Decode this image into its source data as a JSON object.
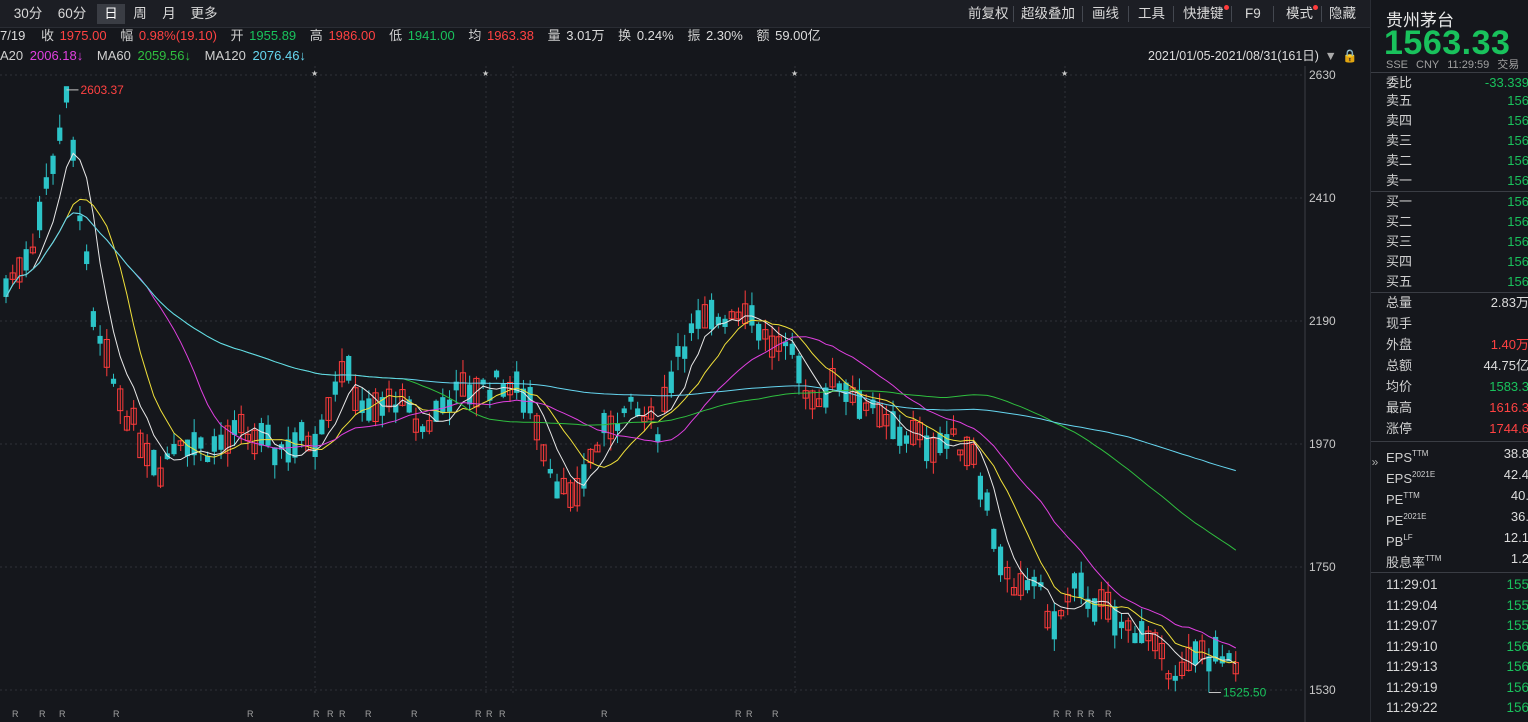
{
  "toolbar": {
    "timeframes": [
      {
        "label": "30分",
        "active": false
      },
      {
        "label": "60分",
        "active": false
      },
      {
        "label": "日",
        "active": true
      },
      {
        "label": "周",
        "active": false
      },
      {
        "label": "月",
        "active": false
      },
      {
        "label": "更多",
        "active": false
      }
    ],
    "tools": [
      "前复权",
      "超级叠加",
      "画线",
      "工具",
      "快捷键",
      "F9",
      "模式",
      "隐藏"
    ]
  },
  "info": {
    "date": "7/19",
    "close_label": "收",
    "close": "1975.00",
    "range_label": "幅",
    "range": "0.98%(19.10)",
    "open_label": "开",
    "open": "1955.89",
    "high_label": "高",
    "high": "1986.00",
    "low_label": "低",
    "low": "1941.00",
    "avg_label": "均",
    "avg": "1963.38",
    "vol_label": "量",
    "vol": "3.01万",
    "turn_label": "换",
    "turn": "0.24%",
    "amp_label": "振",
    "amp": "2.30%",
    "amt_label": "额",
    "amt": "59.00亿"
  },
  "ma": {
    "ma20_label": "A20",
    "ma20": "2006.18↓",
    "ma60_label": "MA60",
    "ma60": "2059.56↓",
    "ma120_label": "MA120",
    "ma120": "2076.46↓",
    "date_range": "2021/01/05-2021/08/31(161日)"
  },
  "chart_data": {
    "type": "candlestick",
    "y_ticks": [
      "2630",
      "2410",
      "2190",
      "1970",
      "1750",
      "1530"
    ],
    "ylim": [
      1530,
      2630
    ],
    "max_label": "2603.37",
    "min_label": "1525.50",
    "marker_star": "★",
    "marker_r": "R",
    "colors": {
      "up": "#ff3b3b",
      "down": "#2cc4c8",
      "ma5": "#e8e8e8",
      "ma10": "#f0e03a",
      "ma20": "#e040e0",
      "ma60": "#2fbf3f",
      "ma120": "#66d6f0"
    }
  },
  "panel": {
    "name": "贵州茅台",
    "price": "1563.33",
    "exchange": "SSE",
    "currency": "CNY",
    "time": "11:29:59",
    "status": "交易",
    "weibi": {
      "label": "委比",
      "value": "-33.339"
    },
    "asks": [
      {
        "label": "卖五",
        "value": "156"
      },
      {
        "label": "卖四",
        "value": "156"
      },
      {
        "label": "卖三",
        "value": "156"
      },
      {
        "label": "卖二",
        "value": "156"
      },
      {
        "label": "卖一",
        "value": "156"
      }
    ],
    "bids": [
      {
        "label": "买一",
        "value": "156"
      },
      {
        "label": "买二",
        "value": "156"
      },
      {
        "label": "买三",
        "value": "156"
      },
      {
        "label": "买四",
        "value": "156"
      },
      {
        "label": "买五",
        "value": "156"
      }
    ],
    "stats": [
      {
        "label": "总量",
        "value": "2.83万",
        "color": "#dcdcdc"
      },
      {
        "label": "现手",
        "value": "",
        "color": "#dcdcdc"
      },
      {
        "label": "外盘",
        "value": "1.40万",
        "color": "#ff4242"
      },
      {
        "label": "总额",
        "value": "44.75亿",
        "color": "#dcdcdc"
      },
      {
        "label": "均价",
        "value": "1583.3",
        "color": "#19c25c"
      },
      {
        "label": "最高",
        "value": "1616.3",
        "color": "#ff4242"
      },
      {
        "label": "涨停",
        "value": "1744.6",
        "color": "#ff4242"
      }
    ],
    "fundamentals": [
      {
        "label": "EPS",
        "sup": "TTM",
        "value": "38.8"
      },
      {
        "label": "EPS",
        "sup": "2021E",
        "value": "42.4"
      },
      {
        "label": "PE",
        "sup": "TTM",
        "value": "40."
      },
      {
        "label": "PE",
        "sup": "2021E",
        "value": "36."
      },
      {
        "label": "PB",
        "sup": "LF",
        "value": "12.1"
      },
      {
        "label": "股息率",
        "sup": "TTM",
        "value": "1.2"
      }
    ],
    "ticks": [
      {
        "time": "11:29:01",
        "value": "155"
      },
      {
        "time": "11:29:04",
        "value": "155"
      },
      {
        "time": "11:29:07",
        "value": "155"
      },
      {
        "time": "11:29:10",
        "value": "156"
      },
      {
        "time": "11:29:13",
        "value": "156"
      },
      {
        "time": "11:29:19",
        "value": "156"
      },
      {
        "time": "11:29:22",
        "value": "156"
      }
    ]
  }
}
